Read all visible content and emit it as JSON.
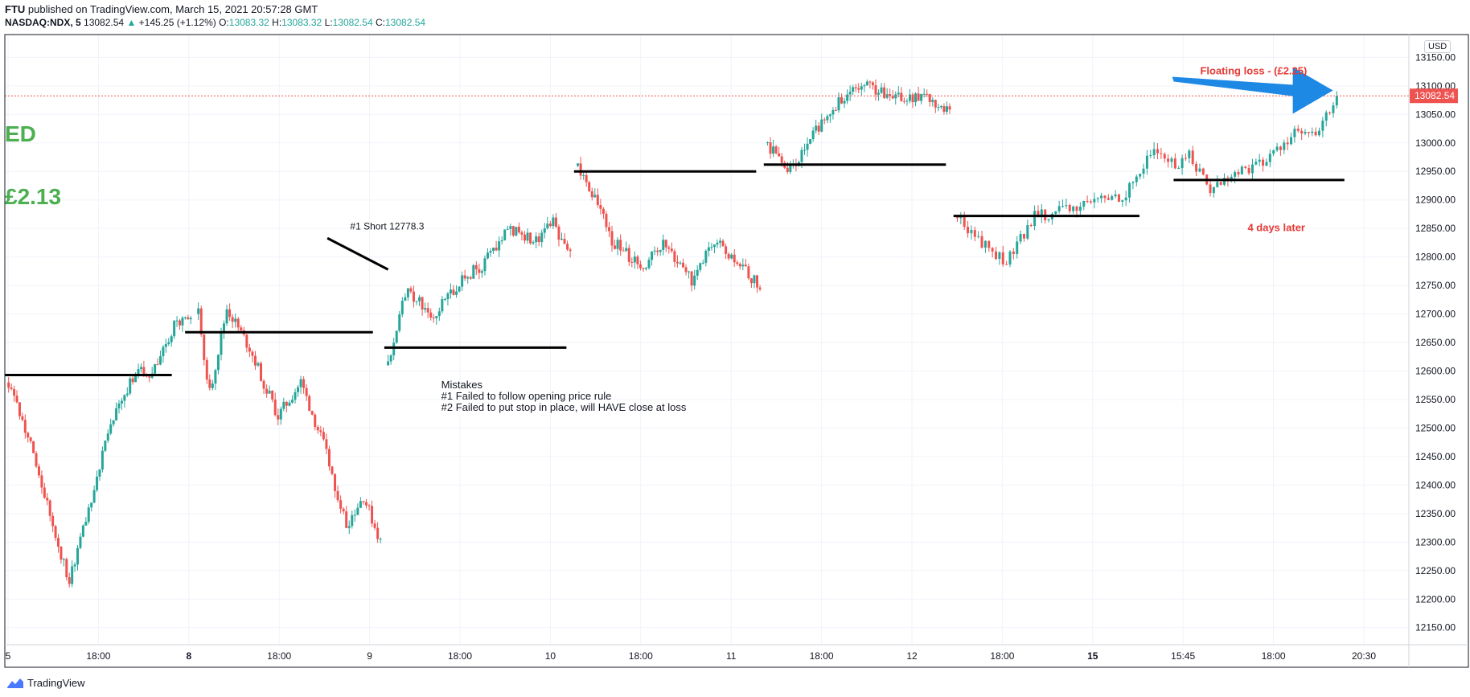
{
  "header": {
    "publisher": "FTU",
    "published_text": "published on TradingView.com, March 15, 2021 20:57:28 GMT",
    "symbol": "NASDAQ:NDX, 5",
    "last": "13082.54",
    "change_arrow": "▲",
    "change": "+145.25 (+1.12%)",
    "o_label": "O:",
    "o_value": "13083.32",
    "h_label": "H:",
    "h_value": "13083.32",
    "l_label": "L:",
    "l_value": "13082.54",
    "c_label": "C:",
    "c_value": "13082.54"
  },
  "currency_badge": "USD",
  "price_tag": "13082.54",
  "footer": {
    "brand": "TradingView",
    "logo_icon": "tradingview-logo-icon"
  },
  "colors": {
    "up": "#26a69a",
    "down": "#ef5350",
    "annotation_red": "#e53935",
    "big_text_green": "#4caf50",
    "arrow_blue": "#1e88e5",
    "price_tag_bg": "#ef5350"
  },
  "chart_data": {
    "type": "candlestick",
    "ylim": [
      12120,
      13190
    ],
    "yticks": [
      12150,
      12200,
      12250,
      12300,
      12350,
      12400,
      12450,
      12500,
      12550,
      12600,
      12650,
      12700,
      12750,
      12800,
      12850,
      12900,
      12950,
      13000,
      13050,
      13100,
      13150
    ],
    "xticks": [
      {
        "label": "5",
        "bold": false
      },
      {
        "label": "18:00",
        "bold": false
      },
      {
        "label": "8",
        "bold": true
      },
      {
        "label": "18:00",
        "bold": false
      },
      {
        "label": "9",
        "bold": false
      },
      {
        "label": "18:00",
        "bold": false
      },
      {
        "label": "10",
        "bold": false
      },
      {
        "label": "18:00",
        "bold": false
      },
      {
        "label": "11",
        "bold": false
      },
      {
        "label": "18:00",
        "bold": false
      },
      {
        "label": "12",
        "bold": false
      },
      {
        "label": "18:00",
        "bold": false
      },
      {
        "label": "15",
        "bold": true
      },
      {
        "label": "15:45",
        "bold": false
      },
      {
        "label": "18:00",
        "bold": false
      },
      {
        "label": "20:30",
        "bold": false
      }
    ],
    "sessions": [
      {
        "open": 12580,
        "points": [
          [
            12580,
            0
          ],
          [
            12470,
            8
          ],
          [
            12330,
            16
          ],
          [
            12230,
            22
          ],
          [
            12380,
            30
          ],
          [
            12520,
            38
          ],
          [
            12600,
            46
          ],
          [
            12590,
            52
          ],
          [
            12680,
            60
          ],
          [
            12700,
            66
          ]
        ]
      },
      {
        "open": 12700,
        "points": [
          [
            12700,
            0
          ],
          [
            12560,
            4
          ],
          [
            12710,
            10
          ],
          [
            12640,
            18
          ],
          [
            12520,
            28
          ],
          [
            12580,
            36
          ],
          [
            12470,
            44
          ],
          [
            12330,
            52
          ],
          [
            12380,
            58
          ],
          [
            12300,
            64
          ]
        ]
      },
      {
        "open": 12610,
        "points": [
          [
            12610,
            0
          ],
          [
            12740,
            6
          ],
          [
            12700,
            16
          ],
          [
            12760,
            26
          ],
          [
            12790,
            34
          ],
          [
            12850,
            42
          ],
          [
            12830,
            52
          ],
          [
            12860,
            58
          ],
          [
            12800,
            64
          ]
        ]
      },
      {
        "open": 12960,
        "points": [
          [
            12960,
            0
          ],
          [
            12900,
            6
          ],
          [
            12830,
            12
          ],
          [
            12780,
            22
          ],
          [
            12820,
            30
          ],
          [
            12760,
            40
          ],
          [
            12830,
            48
          ],
          [
            12790,
            56
          ],
          [
            12750,
            64
          ]
        ]
      },
      {
        "open": 13000,
        "points": [
          [
            13000,
            0
          ],
          [
            12950,
            6
          ],
          [
            12960,
            10
          ],
          [
            13030,
            18
          ],
          [
            13080,
            26
          ],
          [
            13100,
            36
          ],
          [
            13080,
            44
          ],
          [
            13080,
            54
          ],
          [
            13060,
            64
          ]
        ]
      },
      {
        "open": 12870,
        "points": [
          [
            12870,
            0
          ],
          [
            12820,
            8
          ],
          [
            12790,
            14
          ],
          [
            12870,
            22
          ],
          [
            12880,
            30
          ],
          [
            12900,
            40
          ],
          [
            12910,
            48
          ],
          [
            12990,
            56
          ],
          [
            12960,
            62
          ],
          [
            12980,
            66
          ],
          [
            12920,
            72
          ],
          [
            12950,
            80
          ],
          [
            12970,
            88
          ],
          [
            13020,
            96
          ],
          [
            13010,
            102
          ],
          [
            13082,
            108
          ]
        ]
      }
    ],
    "last_price": 13082.54,
    "horizontal_levels": [
      {
        "price": 12593,
        "from": 0.0,
        "to": 0.88
      },
      {
        "price": 12668,
        "from": 0.95,
        "to": 1.94
      },
      {
        "price": 12641,
        "from": 2.0,
        "to": 2.96
      },
      {
        "price": 12950,
        "from": 3.0,
        "to": 3.96
      },
      {
        "price": 12962,
        "from": 4.0,
        "to": 4.96
      },
      {
        "price": 12872,
        "from": 5.0,
        "to": 5.98
      },
      {
        "price": 12935,
        "from": 6.16,
        "to": 7.06
      }
    ],
    "trend_line": {
      "from": [
        1.7,
        12833
      ],
      "to": [
        2.02,
        12778
      ]
    },
    "annotations": {
      "short_label": "#1 Short 12778.3",
      "mistakes_title": "Mistakes",
      "mistake_1": "#1  Failed to follow opening price rule",
      "mistake_2": "#2  Failed to put stop in place, will HAVE close at loss",
      "floating_loss": "Floating loss - (£2.25)",
      "days_later": "4 days later",
      "big_text_1": "ED",
      "big_text_2": "£2.13"
    }
  }
}
